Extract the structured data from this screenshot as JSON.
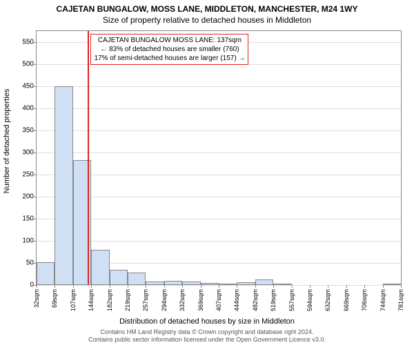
{
  "title": "CAJETAN BUNGALOW, MOSS LANE, MIDDLETON, MANCHESTER, M24 1WY",
  "subtitle": "Size of property relative to detached houses in Middleton",
  "ylabel": "Number of detached properties",
  "xlabel": "Distribution of detached houses by size in Middleton",
  "chart": {
    "type": "histogram",
    "ylim": [
      0,
      575
    ],
    "yticks": [
      0,
      50,
      100,
      150,
      200,
      250,
      300,
      350,
      400,
      450,
      500,
      550
    ],
    "xticks_labels": [
      "32sqm",
      "69sqm",
      "107sqm",
      "144sqm",
      "182sqm",
      "219sqm",
      "257sqm",
      "294sqm",
      "332sqm",
      "369sqm",
      "407sqm",
      "444sqm",
      "482sqm",
      "519sqm",
      "557sqm",
      "594sqm",
      "632sqm",
      "669sqm",
      "706sqm",
      "744sqm",
      "781sqm"
    ],
    "xticks_count": 21,
    "bar_count": 20,
    "values": [
      52,
      450,
      283,
      80,
      35,
      28,
      8,
      10,
      8,
      5,
      2,
      6,
      12,
      2,
      0,
      0,
      0,
      0,
      0,
      2
    ],
    "bar_fill": "#cfe0f5",
    "bar_border": "#888888",
    "grid_color": "#dddddd",
    "background": "#ffffff",
    "refline_pos": 0.141,
    "refline_color": "#e02020"
  },
  "annotation": {
    "line1": "CAJETAN BUNGALOW MOSS LANE: 137sqm",
    "line2": "← 83% of detached houses are smaller (760)",
    "line3": "17% of semi-detached houses are larger (157) →"
  },
  "footer": {
    "line1": "Contains HM Land Registry data © Crown copyright and database right 2024.",
    "line2": "Contains public sector information licensed under the Open Government Licence v3.0."
  },
  "fonts": {
    "title_size": 12,
    "subtitle_size": 12,
    "label_size": 11,
    "tick_size": 10,
    "annot_size": 10,
    "footer_size": 9
  }
}
